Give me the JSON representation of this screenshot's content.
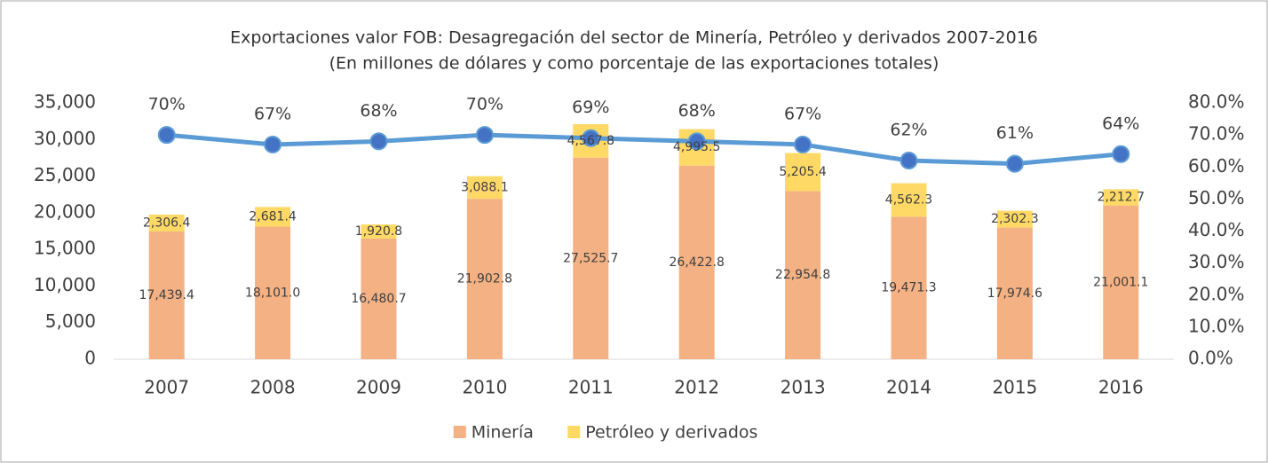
{
  "chart_data": {
    "type": "bar",
    "stacked": true,
    "title": "Exportaciones valor FOB: Desagregación del sector de Minería, Petróleo y derivados 2007-2016",
    "subtitle": "(En millones de dólares y como porcentaje de las exportaciones totales)",
    "categories": [
      "2007",
      "2008",
      "2009",
      "2010",
      "2011",
      "2012",
      "2013",
      "2014",
      "2015",
      "2016"
    ],
    "series": [
      {
        "name": "Minería",
        "color": "#f4b183",
        "type": "bar",
        "values": [
          17439.4,
          18101.0,
          16480.7,
          21902.8,
          27525.7,
          26422.8,
          22954.8,
          19471.3,
          17974.6,
          21001.1
        ],
        "value_labels": [
          "17,439.4",
          "18,101.0",
          "16,480.7",
          "21,902.8",
          "27,525.7",
          "26,422.8",
          "22,954.8",
          "19,471.3",
          "17,974.6",
          "21,001.1"
        ]
      },
      {
        "name": "Petróleo y derivados",
        "color": "#ffd966",
        "type": "bar",
        "values": [
          2306.4,
          2681.4,
          1920.8,
          3088.1,
          4567.8,
          4995.5,
          5205.4,
          4562.3,
          2302.3,
          2212.7
        ],
        "value_labels": [
          "2,306.4",
          "2,681.4",
          "1,920.8",
          "3,088.1",
          "4,567.8",
          "4,995.5",
          "5,205.4",
          "4,562.3",
          "2,302.3",
          "2,212.7"
        ]
      },
      {
        "color": "#5b9bd5",
        "marker_color": "#4472c4",
        "type": "line",
        "axis": "y2",
        "values": [
          70,
          67,
          68,
          70,
          69,
          68,
          67,
          62,
          61,
          64
        ],
        "value_labels": [
          "70%",
          "67%",
          "68%",
          "70%",
          "69%",
          "68%",
          "67%",
          "62%",
          "61%",
          "64%"
        ]
      }
    ],
    "ylim": [
      0,
      35000
    ],
    "yticks": [
      0,
      {
        "value": 5000,
        "label": "5,000"
      },
      {
        "value": 10000,
        "label": "10,000"
      },
      {
        "value": 15000,
        "label": "15,000"
      },
      {
        "value": 20000,
        "label": "20,000"
      },
      {
        "value": 25000,
        "label": "25,000"
      },
      {
        "value": 30000,
        "label": "30,000"
      },
      {
        "value": 35000,
        "label": "35,000"
      }
    ],
    "y2lim": [
      0,
      80
    ],
    "y2ticks": [
      {
        "value": 0,
        "label": "0.0%"
      },
      {
        "value": 10,
        "label": "10.0%"
      },
      {
        "value": 20,
        "label": "20.0%"
      },
      {
        "value": 30,
        "label": "30.0%"
      },
      {
        "value": 40,
        "label": "40.0%"
      },
      {
        "value": 50,
        "label": "50.0%"
      },
      {
        "value": 60,
        "label": "60.0%"
      },
      {
        "value": 70,
        "label": "70.0%"
      },
      {
        "value": 80,
        "label": "80.0%"
      }
    ],
    "grid": false,
    "legend": "bottom"
  }
}
